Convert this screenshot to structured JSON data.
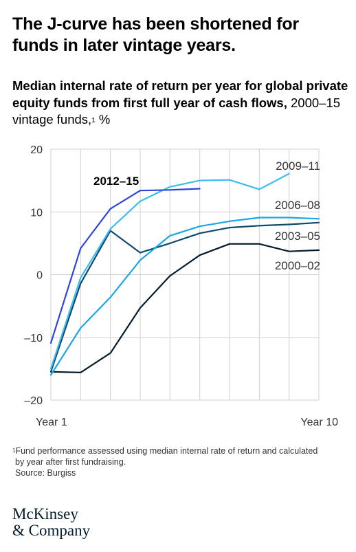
{
  "headline": "The J-curve has been shortened for funds in later vintage years.",
  "subtitle": {
    "bold": "Median internal rate of return per year for global private equity funds from first full year of cash flows,",
    "regular": " 2000–15 vintage funds,",
    "sup": "1",
    "unit": " %"
  },
  "footnote": {
    "sup": "1",
    "line1": "Fund performance assessed using median internal rate of return and calculated",
    "line2": "by year after first fundraising.",
    "line3": "Source: Burgiss"
  },
  "logo": {
    "line1": "McKinsey",
    "line2": "& Company"
  },
  "chart_data": {
    "type": "line",
    "title": "Median internal rate of return per year for global private equity funds from first full year of cash flows, 2000–15 vintage funds, %",
    "x": [
      1,
      2,
      3,
      4,
      5,
      6,
      7,
      8,
      9,
      10
    ],
    "x_tick_labels": {
      "start": "Year 1",
      "end": "Year 10"
    },
    "xlim": [
      1,
      10
    ],
    "ylim": [
      -20,
      20
    ],
    "y_ticks": [
      20,
      10,
      0,
      -10,
      -20
    ],
    "y_tick_labels": [
      "20",
      "10",
      "0",
      "–10",
      "–20"
    ],
    "grid": true,
    "series": [
      {
        "name": "2000–02",
        "color": "#051c2c",
        "label_bold": false,
        "values": [
          -15.5,
          -15.6,
          -12.5,
          -5.3,
          -0.2,
          3.1,
          4.9,
          4.9,
          3.7,
          3.9
        ]
      },
      {
        "name": "2003–05",
        "color": "#0b4a6e",
        "label_bold": false,
        "values": [
          -15.5,
          -1.4,
          7.0,
          3.5,
          5.0,
          6.6,
          7.5,
          7.8,
          8.0,
          8.3
        ]
      },
      {
        "name": "2006–08",
        "color": "#1aa6e6",
        "label_bold": false,
        "values": [
          -16.0,
          -8.5,
          -3.6,
          2.3,
          6.2,
          7.7,
          8.5,
          9.1,
          9.1,
          8.9
        ]
      },
      {
        "name": "2009–11",
        "color": "#3cbcf0",
        "label_bold": false,
        "values": [
          -15.0,
          -0.5,
          7.3,
          11.7,
          14.0,
          15.0,
          15.1,
          13.6,
          16.1,
          null
        ]
      },
      {
        "name": "2012–15",
        "color": "#2f45d8",
        "label_bold": true,
        "values": [
          -10.9,
          4.2,
          10.5,
          13.4,
          13.5,
          13.7,
          null,
          null,
          null,
          null
        ]
      }
    ]
  }
}
